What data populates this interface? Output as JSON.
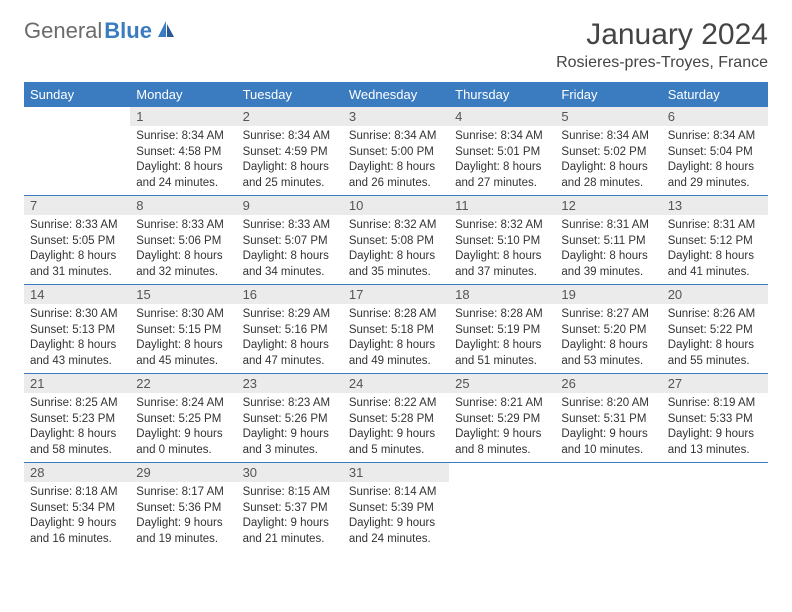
{
  "brand": {
    "part1": "General",
    "part2": "Blue",
    "part1_color": "#6b6b6b",
    "part2_color": "#3b7bbf",
    "icon_color": "#3b7bbf"
  },
  "header": {
    "month_title": "January 2024",
    "location": "Rosieres-pres-Troyes, France"
  },
  "theme": {
    "header_bg": "#3b7bbf",
    "header_fg": "#ffffff",
    "daynum_bg": "#ebebeb",
    "daynum_fg": "#555555",
    "row_border": "#3b7bbf",
    "body_text": "#333333",
    "page_bg": "#ffffff"
  },
  "weekdays": [
    "Sunday",
    "Monday",
    "Tuesday",
    "Wednesday",
    "Thursday",
    "Friday",
    "Saturday"
  ],
  "weeks": [
    [
      {
        "day": "",
        "sunrise": "",
        "sunset": "",
        "daylight_l1": "",
        "daylight_l2": "",
        "empty": true
      },
      {
        "day": "1",
        "sunrise": "Sunrise: 8:34 AM",
        "sunset": "Sunset: 4:58 PM",
        "daylight_l1": "Daylight: 8 hours",
        "daylight_l2": "and 24 minutes."
      },
      {
        "day": "2",
        "sunrise": "Sunrise: 8:34 AM",
        "sunset": "Sunset: 4:59 PM",
        "daylight_l1": "Daylight: 8 hours",
        "daylight_l2": "and 25 minutes."
      },
      {
        "day": "3",
        "sunrise": "Sunrise: 8:34 AM",
        "sunset": "Sunset: 5:00 PM",
        "daylight_l1": "Daylight: 8 hours",
        "daylight_l2": "and 26 minutes."
      },
      {
        "day": "4",
        "sunrise": "Sunrise: 8:34 AM",
        "sunset": "Sunset: 5:01 PM",
        "daylight_l1": "Daylight: 8 hours",
        "daylight_l2": "and 27 minutes."
      },
      {
        "day": "5",
        "sunrise": "Sunrise: 8:34 AM",
        "sunset": "Sunset: 5:02 PM",
        "daylight_l1": "Daylight: 8 hours",
        "daylight_l2": "and 28 minutes."
      },
      {
        "day": "6",
        "sunrise": "Sunrise: 8:34 AM",
        "sunset": "Sunset: 5:04 PM",
        "daylight_l1": "Daylight: 8 hours",
        "daylight_l2": "and 29 minutes."
      }
    ],
    [
      {
        "day": "7",
        "sunrise": "Sunrise: 8:33 AM",
        "sunset": "Sunset: 5:05 PM",
        "daylight_l1": "Daylight: 8 hours",
        "daylight_l2": "and 31 minutes."
      },
      {
        "day": "8",
        "sunrise": "Sunrise: 8:33 AM",
        "sunset": "Sunset: 5:06 PM",
        "daylight_l1": "Daylight: 8 hours",
        "daylight_l2": "and 32 minutes."
      },
      {
        "day": "9",
        "sunrise": "Sunrise: 8:33 AM",
        "sunset": "Sunset: 5:07 PM",
        "daylight_l1": "Daylight: 8 hours",
        "daylight_l2": "and 34 minutes."
      },
      {
        "day": "10",
        "sunrise": "Sunrise: 8:32 AM",
        "sunset": "Sunset: 5:08 PM",
        "daylight_l1": "Daylight: 8 hours",
        "daylight_l2": "and 35 minutes."
      },
      {
        "day": "11",
        "sunrise": "Sunrise: 8:32 AM",
        "sunset": "Sunset: 5:10 PM",
        "daylight_l1": "Daylight: 8 hours",
        "daylight_l2": "and 37 minutes."
      },
      {
        "day": "12",
        "sunrise": "Sunrise: 8:31 AM",
        "sunset": "Sunset: 5:11 PM",
        "daylight_l1": "Daylight: 8 hours",
        "daylight_l2": "and 39 minutes."
      },
      {
        "day": "13",
        "sunrise": "Sunrise: 8:31 AM",
        "sunset": "Sunset: 5:12 PM",
        "daylight_l1": "Daylight: 8 hours",
        "daylight_l2": "and 41 minutes."
      }
    ],
    [
      {
        "day": "14",
        "sunrise": "Sunrise: 8:30 AM",
        "sunset": "Sunset: 5:13 PM",
        "daylight_l1": "Daylight: 8 hours",
        "daylight_l2": "and 43 minutes."
      },
      {
        "day": "15",
        "sunrise": "Sunrise: 8:30 AM",
        "sunset": "Sunset: 5:15 PM",
        "daylight_l1": "Daylight: 8 hours",
        "daylight_l2": "and 45 minutes."
      },
      {
        "day": "16",
        "sunrise": "Sunrise: 8:29 AM",
        "sunset": "Sunset: 5:16 PM",
        "daylight_l1": "Daylight: 8 hours",
        "daylight_l2": "and 47 minutes."
      },
      {
        "day": "17",
        "sunrise": "Sunrise: 8:28 AM",
        "sunset": "Sunset: 5:18 PM",
        "daylight_l1": "Daylight: 8 hours",
        "daylight_l2": "and 49 minutes."
      },
      {
        "day": "18",
        "sunrise": "Sunrise: 8:28 AM",
        "sunset": "Sunset: 5:19 PM",
        "daylight_l1": "Daylight: 8 hours",
        "daylight_l2": "and 51 minutes."
      },
      {
        "day": "19",
        "sunrise": "Sunrise: 8:27 AM",
        "sunset": "Sunset: 5:20 PM",
        "daylight_l1": "Daylight: 8 hours",
        "daylight_l2": "and 53 minutes."
      },
      {
        "day": "20",
        "sunrise": "Sunrise: 8:26 AM",
        "sunset": "Sunset: 5:22 PM",
        "daylight_l1": "Daylight: 8 hours",
        "daylight_l2": "and 55 minutes."
      }
    ],
    [
      {
        "day": "21",
        "sunrise": "Sunrise: 8:25 AM",
        "sunset": "Sunset: 5:23 PM",
        "daylight_l1": "Daylight: 8 hours",
        "daylight_l2": "and 58 minutes."
      },
      {
        "day": "22",
        "sunrise": "Sunrise: 8:24 AM",
        "sunset": "Sunset: 5:25 PM",
        "daylight_l1": "Daylight: 9 hours",
        "daylight_l2": "and 0 minutes."
      },
      {
        "day": "23",
        "sunrise": "Sunrise: 8:23 AM",
        "sunset": "Sunset: 5:26 PM",
        "daylight_l1": "Daylight: 9 hours",
        "daylight_l2": "and 3 minutes."
      },
      {
        "day": "24",
        "sunrise": "Sunrise: 8:22 AM",
        "sunset": "Sunset: 5:28 PM",
        "daylight_l1": "Daylight: 9 hours",
        "daylight_l2": "and 5 minutes."
      },
      {
        "day": "25",
        "sunrise": "Sunrise: 8:21 AM",
        "sunset": "Sunset: 5:29 PM",
        "daylight_l1": "Daylight: 9 hours",
        "daylight_l2": "and 8 minutes."
      },
      {
        "day": "26",
        "sunrise": "Sunrise: 8:20 AM",
        "sunset": "Sunset: 5:31 PM",
        "daylight_l1": "Daylight: 9 hours",
        "daylight_l2": "and 10 minutes."
      },
      {
        "day": "27",
        "sunrise": "Sunrise: 8:19 AM",
        "sunset": "Sunset: 5:33 PM",
        "daylight_l1": "Daylight: 9 hours",
        "daylight_l2": "and 13 minutes."
      }
    ],
    [
      {
        "day": "28",
        "sunrise": "Sunrise: 8:18 AM",
        "sunset": "Sunset: 5:34 PM",
        "daylight_l1": "Daylight: 9 hours",
        "daylight_l2": "and 16 minutes."
      },
      {
        "day": "29",
        "sunrise": "Sunrise: 8:17 AM",
        "sunset": "Sunset: 5:36 PM",
        "daylight_l1": "Daylight: 9 hours",
        "daylight_l2": "and 19 minutes."
      },
      {
        "day": "30",
        "sunrise": "Sunrise: 8:15 AM",
        "sunset": "Sunset: 5:37 PM",
        "daylight_l1": "Daylight: 9 hours",
        "daylight_l2": "and 21 minutes."
      },
      {
        "day": "31",
        "sunrise": "Sunrise: 8:14 AM",
        "sunset": "Sunset: 5:39 PM",
        "daylight_l1": "Daylight: 9 hours",
        "daylight_l2": "and 24 minutes."
      },
      {
        "day": "",
        "sunrise": "",
        "sunset": "",
        "daylight_l1": "",
        "daylight_l2": "",
        "empty": true
      },
      {
        "day": "",
        "sunrise": "",
        "sunset": "",
        "daylight_l1": "",
        "daylight_l2": "",
        "empty": true
      },
      {
        "day": "",
        "sunrise": "",
        "sunset": "",
        "daylight_l1": "",
        "daylight_l2": "",
        "empty": true
      }
    ]
  ]
}
